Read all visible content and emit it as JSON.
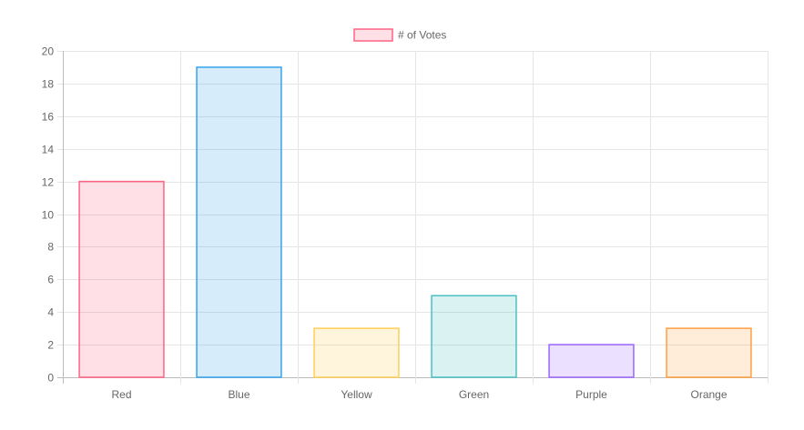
{
  "chart_data": {
    "type": "bar",
    "categories": [
      "Red",
      "Blue",
      "Yellow",
      "Green",
      "Purple",
      "Orange"
    ],
    "series": [
      {
        "name": "# of Votes",
        "values": [
          12,
          19,
          3,
          5,
          2,
          3
        ],
        "fill_colors": [
          "#ff638433",
          "#36a2eb33",
          "#ffce5633",
          "#4bc0c033",
          "#9966ff33",
          "#ff9f4033"
        ],
        "border_colors": [
          "#ff6384",
          "#36a2eb",
          "#ffce56",
          "#4bc0c0",
          "#9966ff",
          "#ff9f40"
        ]
      }
    ],
    "yticks": [
      0,
      2,
      4,
      6,
      8,
      10,
      12,
      14,
      16,
      18,
      20
    ],
    "ylim": [
      0,
      20
    ],
    "grid": true,
    "legend_position": "top",
    "title": "",
    "xlabel": "",
    "ylabel": ""
  }
}
